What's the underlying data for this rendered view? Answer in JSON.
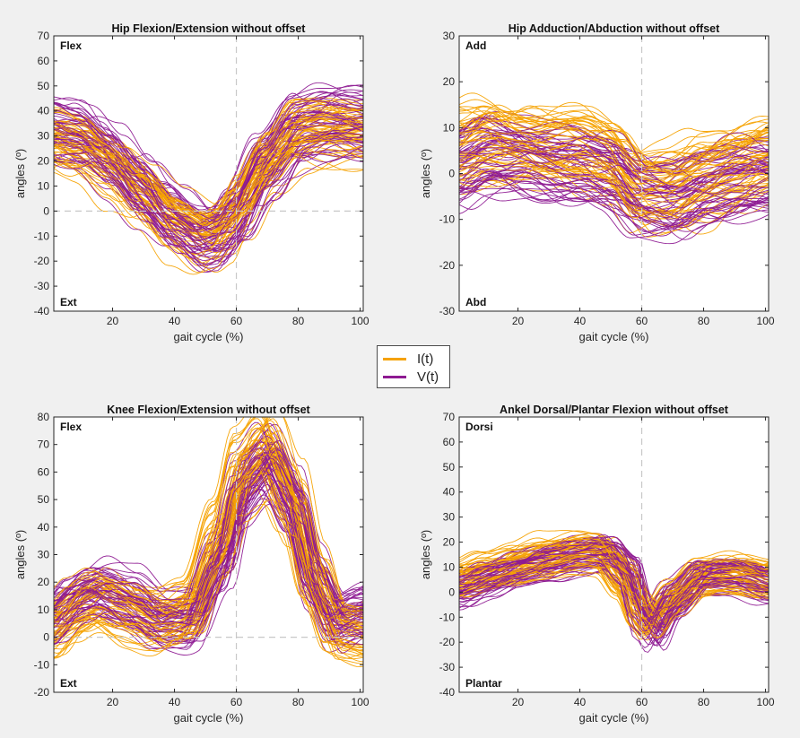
{
  "colors": {
    "I": "#f5a201",
    "V": "#8e1a92",
    "axis": "#262626",
    "guide": "#c8c8c8"
  },
  "legend": {
    "items": [
      {
        "label": "I(t)",
        "color_key": "I"
      },
      {
        "label": "V(t)",
        "color_key": "V"
      }
    ]
  },
  "chart_data": [
    {
      "type": "line",
      "title": "Hip Flexion/Extension without offset",
      "xlabel": "gait cycle (%)",
      "ylabel": "angles (º)",
      "xlim": [
        1,
        101
      ],
      "ylim": [
        -40,
        70
      ],
      "xticks": [
        20,
        40,
        60,
        80,
        100
      ],
      "yticks": [
        -40,
        -30,
        -20,
        -10,
        0,
        10,
        20,
        30,
        40,
        50,
        60,
        70
      ],
      "corner_top": "Flex",
      "corner_bottom": "Ext",
      "vline": 60,
      "hline": 0,
      "series": [
        {
          "name": "I(t)",
          "mean_x": [
            1,
            10,
            20,
            30,
            40,
            50,
            55,
            60,
            70,
            80,
            90,
            101
          ],
          "mean_y": [
            27,
            24,
            16,
            6,
            -5,
            -11,
            -9,
            0,
            18,
            30,
            31,
            30
          ],
          "spread": 12
        },
        {
          "name": "V(t)",
          "mean_x": [
            1,
            10,
            20,
            30,
            40,
            50,
            55,
            60,
            70,
            80,
            90,
            101
          ],
          "mean_y": [
            33,
            30,
            21,
            9,
            -3,
            -11,
            -10,
            -3,
            18,
            33,
            36,
            35
          ],
          "spread": 12
        }
      ]
    },
    {
      "type": "line",
      "title": "Hip Adduction/Abduction without offset",
      "xlabel": "gait cycle (%)",
      "ylabel": "angles (º)",
      "xlim": [
        1,
        101
      ],
      "ylim": [
        -30,
        30
      ],
      "xticks": [
        20,
        40,
        60,
        80,
        100
      ],
      "yticks": [
        -30,
        -20,
        -10,
        0,
        10,
        20,
        30
      ],
      "corner_top": "Add",
      "corner_bottom": "Abd",
      "vline": 60,
      "hline": null,
      "series": [
        {
          "name": "I(t)",
          "mean_x": [
            1,
            10,
            20,
            30,
            40,
            50,
            60,
            70,
            80,
            90,
            101
          ],
          "mean_y": [
            5,
            7,
            6,
            5,
            5,
            3,
            -4,
            -4,
            -1,
            1,
            3
          ],
          "spread": 9
        },
        {
          "name": "V(t)",
          "mean_x": [
            1,
            10,
            20,
            30,
            40,
            50,
            60,
            70,
            80,
            90,
            101
          ],
          "mean_y": [
            1,
            4,
            3,
            2,
            2,
            0,
            -5,
            -6,
            -3,
            -2,
            -1
          ],
          "spread": 8
        }
      ]
    },
    {
      "type": "line",
      "title": "Knee Flexion/Extension without offset",
      "xlabel": "gait cycle (%)",
      "ylabel": "angles (º)",
      "xlim": [
        1,
        101
      ],
      "ylim": [
        -20,
        80
      ],
      "xticks": [
        20,
        40,
        60,
        80,
        100
      ],
      "yticks": [
        -20,
        -10,
        0,
        10,
        20,
        30,
        40,
        50,
        60,
        70,
        80
      ],
      "corner_top": "Flex",
      "corner_bottom": "Ext",
      "vline": 60,
      "hline": 0,
      "series": [
        {
          "name": "I(t)",
          "mean_x": [
            1,
            8,
            15,
            25,
            35,
            45,
            55,
            62,
            70,
            78,
            85,
            92,
            101
          ],
          "mean_y": [
            4,
            10,
            14,
            10,
            6,
            10,
            36,
            60,
            68,
            50,
            22,
            4,
            2
          ],
          "spread": 10
        },
        {
          "name": "V(t)",
          "mean_x": [
            1,
            8,
            15,
            25,
            35,
            45,
            55,
            62,
            70,
            78,
            85,
            92,
            101
          ],
          "mean_y": [
            8,
            15,
            18,
            14,
            7,
            7,
            28,
            55,
            65,
            50,
            22,
            7,
            10
          ],
          "spread": 10
        }
      ]
    },
    {
      "type": "line",
      "title": "Ankel Dorsal/Plantar Flexion without offset",
      "xlabel": "gait cycle (%)",
      "ylabel": "angles (º)",
      "xlim": [
        1,
        101
      ],
      "ylim": [
        -40,
        70
      ],
      "xticks": [
        20,
        40,
        60,
        80,
        100
      ],
      "yticks": [
        -40,
        -30,
        -20,
        -10,
        0,
        10,
        20,
        30,
        40,
        50,
        60,
        70
      ],
      "corner_top": "Dorsi",
      "corner_bottom": "Plantar",
      "vline": 60,
      "hline": null,
      "series": [
        {
          "name": "I(t)",
          "mean_x": [
            1,
            10,
            20,
            30,
            40,
            48,
            55,
            60,
            63,
            70,
            80,
            90,
            101
          ],
          "mean_y": [
            5,
            8,
            11,
            14,
            16,
            15,
            5,
            -8,
            -12,
            -3,
            6,
            7,
            5
          ],
          "spread": 7
        },
        {
          "name": "V(t)",
          "mean_x": [
            1,
            10,
            20,
            30,
            40,
            48,
            55,
            60,
            64,
            70,
            80,
            90,
            101
          ],
          "mean_y": [
            0,
            4,
            8,
            11,
            14,
            15,
            8,
            -10,
            -16,
            -5,
            6,
            6,
            2
          ],
          "spread": 7
        }
      ]
    }
  ]
}
